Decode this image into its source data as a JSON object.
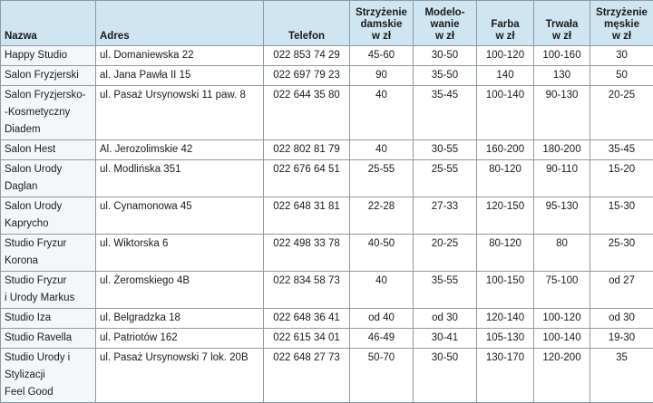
{
  "table": {
    "header": [
      "Nazwa",
      "Adres",
      "Telefon",
      "Strzyżenie\ndamskie\nw zł",
      "Modelo-\nwanie\nw zł",
      "Farba\nw zł",
      "Trwała\nw zł",
      "Strzyżenie\nmęskie\nw zł"
    ],
    "rows": [
      [
        "Happy Studio",
        "ul. Domaniewska 22",
        "022 853 74 29",
        "45-60",
        "30-50",
        "100-120",
        "100-160",
        "30"
      ],
      [
        "Salon Fryzjerski",
        "al. Jana Pawła II 15",
        "022 697 79 23",
        "90",
        "35-50",
        "140",
        "130",
        "50"
      ],
      [
        "Salon Fryzjersko-\n-Kosmetyczny\nDiadem",
        "ul. Pasaż Ursynowski 11 paw. 8",
        "022 644 35 80",
        "40",
        "35-45",
        "100-140",
        "90-130",
        "20-25"
      ],
      [
        "Salon Hest",
        "Al. Jerozolimskie 42",
        "022 802 81 79",
        "40",
        "30-55",
        "160-200",
        "180-200",
        "35-45"
      ],
      [
        "Salon Urody\nDaglan",
        "ul. Modlińska 351",
        "022 676 64 51",
        "25-55",
        "25-55",
        "80-120",
        "90-110",
        "15-20"
      ],
      [
        "Salon Urody\nKaprycho",
        "ul. Cynamonowa 45",
        "022 648 31 81",
        "22-28",
        "27-33",
        "120-150",
        "95-130",
        "15-30"
      ],
      [
        "Studio Fryzur\nKorona",
        "ul. Wiktorska 6",
        "022 498 33 78",
        "40-50",
        "20-25",
        "80-120",
        "80",
        "25-30"
      ],
      [
        "Studio Fryzur\ni Urody Markus",
        "ul. Żeromskiego 4B",
        "022 834 58 73",
        "40",
        "35-55",
        "100-150",
        "75-100",
        "od 27"
      ],
      [
        "Studio Iza",
        "ul. Belgradzka 18",
        "022 648 36 41",
        "od 40",
        "od 30",
        "120-140",
        "100-120",
        "od 30"
      ],
      [
        "Studio Ravella",
        "ul. Patriotów 162",
        "022 615 34 01",
        "46-49",
        "30-41",
        "105-130",
        "100-140",
        "19-30"
      ],
      [
        "Studio Urody i\nStylizacji\nFeel Good",
        "ul. Pasaż Ursynowski 7 lok. 20B",
        "022 648 27 73",
        "50-70",
        "30-50",
        "130-170",
        "120-200",
        "35"
      ]
    ]
  }
}
